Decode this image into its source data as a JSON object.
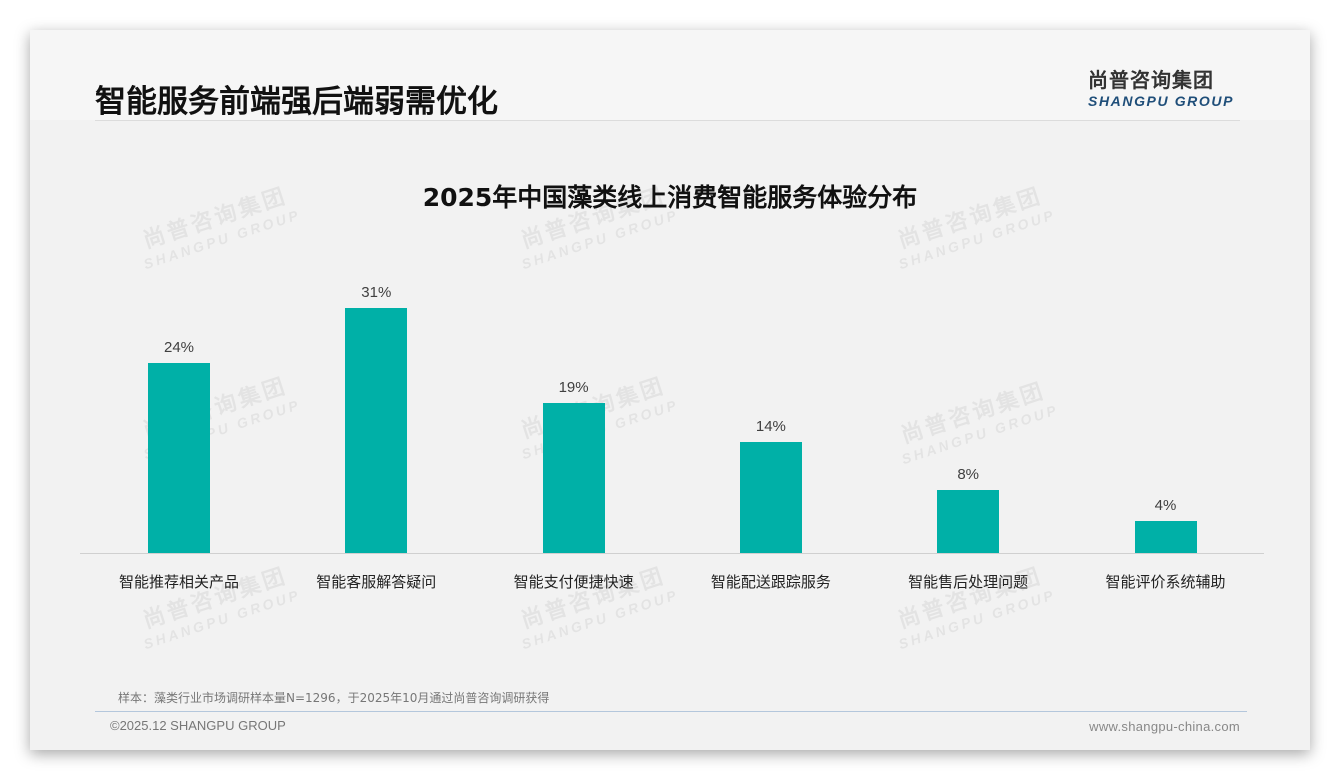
{
  "header": {
    "title": "智能服务前端强后端弱需优化",
    "logo_cn": "尚普咨询集团",
    "logo_en": "SHANGPU GROUP"
  },
  "watermark": {
    "cn": "尚普咨询集团",
    "en": "SHANGPU GROUP"
  },
  "chart_data": {
    "type": "bar",
    "title": "2025年中国藻类线上消费智能服务体验分布",
    "categories": [
      "智能推荐相关产品",
      "智能客服解答疑问",
      "智能支付便捷快速",
      "智能配送跟踪服务",
      "智能售后处理问题",
      "智能评价系统辅助"
    ],
    "values": [
      24,
      31,
      19,
      14,
      8,
      4
    ],
    "value_labels": [
      "24%",
      "31%",
      "19%",
      "14%",
      "8%",
      "4%"
    ],
    "unit": "%",
    "xlabel": "",
    "ylabel": "",
    "grid": false,
    "legend": null,
    "bar_color": "#00b0a7"
  },
  "footer": {
    "source": "样本：藻类行业市场调研样本量N=1296，于2025年10月通过尚普咨询调研获得",
    "copyright": "©2025.12 SHANGPU GROUP",
    "website": "www.shangpu-china.com"
  }
}
